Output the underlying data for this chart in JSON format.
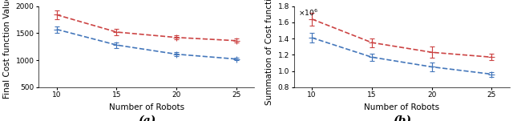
{
  "x": [
    10,
    15,
    20,
    25
  ],
  "subplot_a": {
    "red_y": [
      1840,
      1520,
      1420,
      1360
    ],
    "blue_y": [
      1570,
      1280,
      1110,
      1020
    ],
    "red_yerr": [
      80,
      60,
      40,
      35
    ],
    "blue_yerr": [
      60,
      50,
      35,
      25
    ],
    "ylabel": "Final Cost function Value",
    "xlabel": "Number of Robots",
    "label": "(a)",
    "ylim": [
      500,
      2000
    ],
    "yticks": [
      500,
      1000,
      1500,
      2000
    ]
  },
  "subplot_b": {
    "red_y": [
      1640000,
      1350000,
      1230000,
      1170000
    ],
    "blue_y": [
      1410000,
      1170000,
      1050000,
      960000
    ],
    "red_yerr": [
      80000,
      55000,
      70000,
      40000
    ],
    "blue_yerr": [
      60000,
      45000,
      55000,
      30000
    ],
    "ylabel": "Summation of Cost function",
    "xlabel": "Number of Robots",
    "label": "(b)",
    "ylim": [
      800000,
      1800000
    ],
    "yticks": [
      0.8,
      1.0,
      1.2,
      1.4,
      1.6,
      1.8
    ],
    "yticks_raw": [
      800000,
      1000000,
      1200000,
      1400000,
      1600000,
      1800000
    ]
  },
  "red_color": "#cc4444",
  "blue_color": "#4477bb",
  "line_style": "--",
  "marker": "+",
  "markersize": 6,
  "linewidth": 1.2,
  "xticks": [
    10,
    15,
    20,
    25
  ],
  "label_fontsize": 7.5,
  "tick_fontsize": 6.5,
  "caption_fontsize": 10
}
